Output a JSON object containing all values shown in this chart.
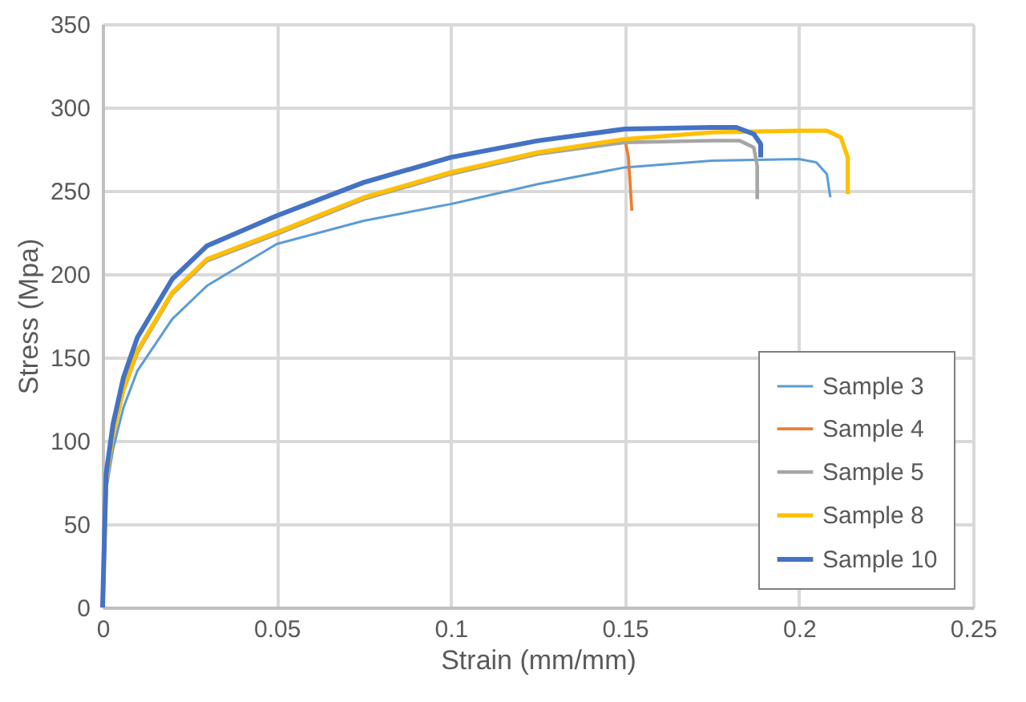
{
  "chart_data": {
    "type": "line",
    "xlabel": "Strain (mm/mm)",
    "ylabel": "Stress (Mpa)",
    "xlim": [
      0,
      0.25
    ],
    "xticks": [
      0,
      0.05,
      0.1,
      0.15,
      0.2,
      0.25
    ],
    "ylim": [
      0,
      350
    ],
    "yticks": [
      0,
      50,
      100,
      150,
      200,
      250,
      300,
      350
    ],
    "grid": true,
    "legend": "bottom right",
    "marker": "none",
    "line_style": "solid",
    "series": [
      {
        "name": "Sample 3",
        "color": "#5b9bd5",
        "x": [
          0,
          0.001,
          0.003,
          0.006,
          0.01,
          0.02,
          0.03,
          0.05,
          0.075,
          0.1,
          0.125,
          0.15,
          0.175,
          0.2,
          0.205,
          0.208,
          0.209
        ],
        "values": [
          0,
          70,
          95,
          120,
          142,
          173,
          193,
          218,
          232,
          242,
          254,
          264,
          268,
          269,
          267,
          260,
          246
        ]
      },
      {
        "name": "Sample 4",
        "color": "#ed7d31",
        "x": [
          0.003,
          0.006,
          0.01,
          0.02,
          0.03,
          0.05,
          0.075,
          0.1,
          0.125,
          0.15,
          0.151,
          0.152
        ],
        "values": [
          103,
          130,
          153,
          188,
          208,
          224,
          245,
          261,
          273,
          281,
          270,
          238
        ]
      },
      {
        "name": "Sample 5",
        "color": "#a5a5a5",
        "x": [
          0,
          0.001,
          0.003,
          0.006,
          0.01,
          0.02,
          0.03,
          0.05,
          0.075,
          0.1,
          0.125,
          0.15,
          0.175,
          0.183,
          0.187,
          0.188,
          0.188
        ],
        "values": [
          0,
          75,
          103,
          130,
          153,
          188,
          208,
          224,
          245,
          260,
          272,
          279,
          280,
          280,
          276,
          265,
          245
        ]
      },
      {
        "name": "Sample 8",
        "color": "#ffc000",
        "x": [
          0,
          0.001,
          0.003,
          0.006,
          0.01,
          0.02,
          0.03,
          0.05,
          0.075,
          0.1,
          0.125,
          0.15,
          0.175,
          0.2,
          0.208,
          0.212,
          0.214,
          0.214
        ],
        "values": [
          0,
          76,
          104,
          131,
          154,
          189,
          209,
          225,
          246,
          261,
          273,
          281,
          285,
          286,
          286,
          282,
          270,
          248
        ]
      },
      {
        "name": "Sample 10",
        "color": "#4472c4",
        "x": [
          0,
          0.001,
          0.003,
          0.006,
          0.01,
          0.02,
          0.03,
          0.05,
          0.075,
          0.1,
          0.125,
          0.15,
          0.175,
          0.182,
          0.187,
          0.189,
          0.189
        ],
        "values": [
          0,
          80,
          110,
          138,
          162,
          197,
          217,
          235,
          255,
          270,
          280,
          287,
          288,
          288,
          284,
          278,
          270
        ]
      }
    ]
  }
}
